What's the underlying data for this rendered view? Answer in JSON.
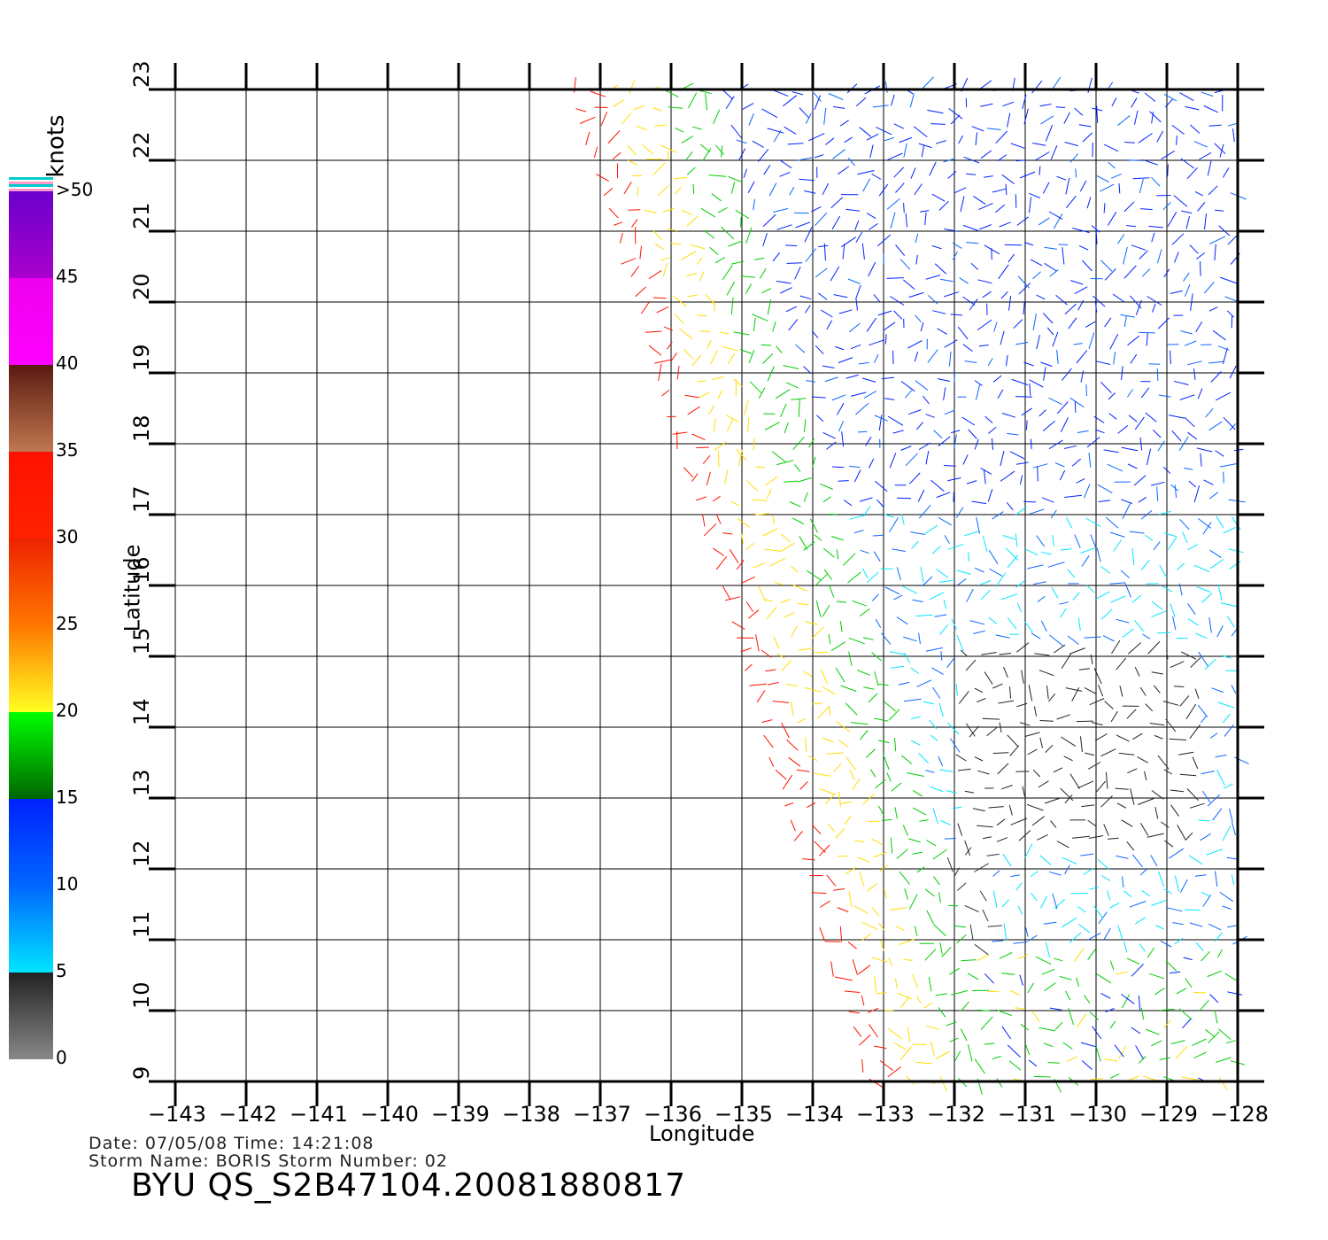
{
  "map": {
    "lon_range": [
      -143,
      -128
    ],
    "lat_range": [
      9,
      23
    ],
    "lon_ticks": [
      "−143",
      "−142",
      "−141",
      "−140",
      "−139",
      "−138",
      "−137",
      "−136",
      "−135",
      "−134",
      "−133",
      "−132",
      "−131",
      "−130",
      "−129",
      "−128"
    ],
    "lat_ticks": [
      "9",
      "10",
      "11",
      "12",
      "13",
      "14",
      "15",
      "16",
      "17",
      "18",
      "19",
      "20",
      "21",
      "22",
      "23"
    ],
    "xlabel": "Longitude",
    "ylabel": "Latitude",
    "grid": true
  },
  "colorbar": {
    "units": "knots",
    "labels": [
      "0",
      "5",
      "10",
      "15",
      "20",
      "25",
      "30",
      "35",
      "40",
      "45",
      ">50"
    ],
    "colors": {
      "gray": "#888888",
      "cyan": "#00e5ff",
      "blue": "#0022ff",
      "green": "#00cc00",
      "yellow": "#ffdd00",
      "orange": "#ff7700",
      "red": "#ff1100",
      "brown": "#5a1a10",
      "magenta": "#ee00ee",
      "purple": "#6a00cc"
    }
  },
  "footer": {
    "date_line": "Date: 07/05/08   Time: 14:21:08",
    "storm_line": "Storm Name: BORIS   Storm Number: 02",
    "file_id": "BYU QS_S2B47104.20081880817"
  }
}
